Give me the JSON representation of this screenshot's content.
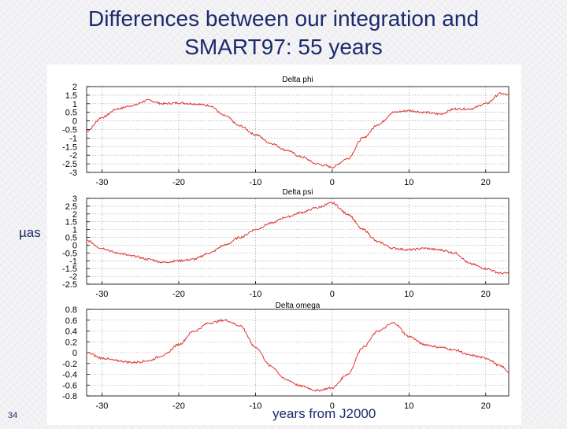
{
  "slide": {
    "title_line1": "Differences between our integration and",
    "title_line2": "SMART97: 55 years",
    "unit_label": "µas",
    "page_number": "34",
    "x_caption": "years from J2000"
  },
  "colors": {
    "title": "#1a2a6c",
    "series": "#e0322f",
    "grid": "#9a9a9a",
    "axis": "#000000"
  },
  "chart_data": [
    {
      "type": "line",
      "title": "Delta phi",
      "xlim": [
        -32,
        23
      ],
      "ylim": [
        -3,
        2
      ],
      "xticks": [
        -30,
        -20,
        -10,
        0,
        10,
        20
      ],
      "yticks": [
        -3,
        -2.5,
        -2,
        -1.5,
        -1,
        -0.5,
        0,
        0.5,
        1,
        1.5,
        2
      ],
      "grid": true,
      "series": [
        {
          "x": [
            -32,
            -30,
            -28,
            -26,
            -24,
            -22,
            -20,
            -18,
            -16,
            -14,
            -12,
            -10,
            -8,
            -6,
            -4,
            -2,
            -1,
            0,
            2,
            4,
            6,
            8,
            10,
            12,
            14,
            16,
            18,
            20,
            22,
            23
          ],
          "y": [
            -0.6,
            0.2,
            0.7,
            0.9,
            1.2,
            1.0,
            1.05,
            1.0,
            0.9,
            0.3,
            -0.3,
            -0.8,
            -1.3,
            -1.7,
            -2.1,
            -2.5,
            -2.6,
            -2.7,
            -2.2,
            -1.0,
            -0.2,
            0.5,
            0.6,
            0.5,
            0.4,
            0.7,
            0.7,
            1.0,
            1.6,
            1.5
          ]
        }
      ]
    },
    {
      "type": "line",
      "title": "Delta psi",
      "xlim": [
        -32,
        23
      ],
      "ylim": [
        -2.5,
        3
      ],
      "xticks": [
        -30,
        -20,
        -10,
        0,
        10,
        20
      ],
      "yticks": [
        -2.5,
        -2,
        -1.5,
        -1,
        -0.5,
        0,
        0.5,
        1,
        1.5,
        2,
        2.5,
        3
      ],
      "grid": true,
      "series": [
        {
          "x": [
            -32,
            -30,
            -28,
            -26,
            -24,
            -22,
            -20,
            -18,
            -16,
            -14,
            -12,
            -10,
            -8,
            -6,
            -4,
            -2,
            0,
            2,
            4,
            6,
            8,
            10,
            12,
            14,
            16,
            18,
            20,
            22,
            23
          ],
          "y": [
            0.3,
            -0.2,
            -0.5,
            -0.7,
            -0.9,
            -1.1,
            -1.0,
            -0.9,
            -0.5,
            0.0,
            0.5,
            1.0,
            1.4,
            1.8,
            2.1,
            2.4,
            2.7,
            2.0,
            1.0,
            0.2,
            -0.2,
            -0.3,
            -0.2,
            -0.3,
            -0.5,
            -1.2,
            -1.5,
            -1.8,
            -1.8
          ]
        }
      ]
    },
    {
      "type": "line",
      "title": "Delta omega",
      "xlim": [
        -32,
        23
      ],
      "ylim": [
        -0.8,
        0.8
      ],
      "xticks": [
        -30,
        -20,
        -10,
        0,
        10,
        20
      ],
      "yticks": [
        -0.8,
        -0.6,
        -0.4,
        -0.2,
        0,
        0.2,
        0.4,
        0.6,
        0.8
      ],
      "grid": true,
      "series": [
        {
          "x": [
            -32,
            -30,
            -28,
            -26,
            -24,
            -22,
            -20,
            -18,
            -16,
            -14,
            -12,
            -10,
            -8,
            -6,
            -4,
            -2,
            0,
            2,
            4,
            6,
            8,
            10,
            12,
            14,
            16,
            18,
            20,
            22,
            23
          ],
          "y": [
            0.0,
            -0.1,
            -0.15,
            -0.18,
            -0.15,
            -0.05,
            0.15,
            0.4,
            0.55,
            0.6,
            0.5,
            0.1,
            -0.25,
            -0.5,
            -0.62,
            -0.7,
            -0.65,
            -0.4,
            0.1,
            0.4,
            0.55,
            0.3,
            0.15,
            0.1,
            0.05,
            -0.05,
            -0.1,
            -0.25,
            -0.35
          ]
        }
      ]
    }
  ]
}
